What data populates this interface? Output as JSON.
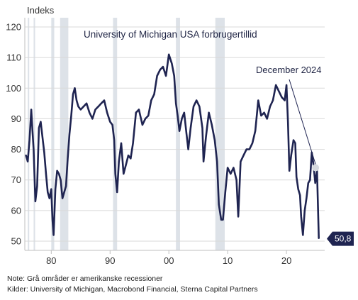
{
  "chart_data": {
    "type": "line",
    "title": "University of Michigan USA forbrugertillid",
    "ylabel": "Indeks",
    "ylim": [
      47,
      123
    ],
    "yticks": [
      50,
      60,
      70,
      80,
      90,
      100,
      110,
      120
    ],
    "xlim": [
      1975.5,
      2026.5
    ],
    "xticks": [
      {
        "value": 1980,
        "label": "80"
      },
      {
        "value": 1990,
        "label": "90"
      },
      {
        "value": 2000,
        "label": "00"
      },
      {
        "value": 2010,
        "label": "10"
      },
      {
        "value": 2020,
        "label": "20"
      }
    ],
    "grid": true,
    "recessions": [
      [
        1976.0,
        1976.25
      ],
      [
        1977.0,
        1977.25
      ],
      [
        1980.0,
        1980.5
      ],
      [
        1981.5,
        1982.9
      ],
      [
        1990.5,
        1991.2
      ],
      [
        2001.2,
        2001.9
      ],
      [
        2007.9,
        2009.5
      ]
    ],
    "series": [
      {
        "color": "#1f2451",
        "x": [
          1975.7,
          1976.0,
          1976.3,
          1976.6,
          1976.8,
          1977.0,
          1977.3,
          1977.6,
          1977.9,
          1978.2,
          1978.5,
          1978.8,
          1979.1,
          1979.4,
          1979.7,
          1980.0,
          1980.2,
          1980.4,
          1980.7,
          1981.0,
          1981.3,
          1981.6,
          1981.9,
          1982.2,
          1982.5,
          1982.8,
          1983.1,
          1983.4,
          1983.7,
          1984.0,
          1984.3,
          1984.6,
          1985.0,
          1985.5,
          1986.0,
          1986.5,
          1987.0,
          1987.5,
          1988.0,
          1988.5,
          1989.0,
          1989.5,
          1990.0,
          1990.4,
          1990.7,
          1990.9,
          1991.2,
          1991.5,
          1991.9,
          1992.3,
          1992.7,
          1993.1,
          1993.5,
          1993.9,
          1994.4,
          1994.9,
          1995.5,
          1996.0,
          1996.5,
          1997.0,
          1997.5,
          1998.0,
          1998.5,
          1999.0,
          1999.5,
          2000.0,
          2000.5,
          2000.9,
          2001.2,
          2001.5,
          2001.8,
          2002.2,
          2002.6,
          2003.0,
          2003.3,
          2003.7,
          2004.2,
          2004.7,
          2005.2,
          2005.7,
          2005.9,
          2006.3,
          2006.8,
          2007.3,
          2007.8,
          2008.2,
          2008.5,
          2008.9,
          2009.2,
          2009.6,
          2010.0,
          2010.5,
          2011.0,
          2011.5,
          2011.8,
          2012.2,
          2012.7,
          2013.2,
          2013.7,
          2014.2,
          2014.7,
          2015.2,
          2015.7,
          2016.2,
          2016.7,
          2017.2,
          2017.7,
          2018.2,
          2018.7,
          2019.2,
          2019.7,
          2020.0,
          2020.25,
          2020.5,
          2020.8,
          2021.2,
          2021.5,
          2021.7,
          2022.0,
          2022.3,
          2022.5,
          2022.8,
          2023.1,
          2023.4,
          2023.7,
          2024.0,
          2024.3,
          2024.6,
          2024.9,
          2025.2,
          2025.5
        ],
        "y": [
          78,
          76,
          83,
          93,
          86,
          80,
          63,
          68,
          87,
          89,
          84,
          79,
          72,
          66,
          64,
          67,
          57,
          52,
          67,
          73,
          72,
          70,
          64,
          66,
          68,
          77,
          85,
          91,
          98,
          100,
          96,
          94,
          93,
          94,
          95,
          92,
          90,
          93,
          94,
          95,
          96,
          92,
          89,
          88,
          83,
          72,
          66,
          76,
          82,
          72,
          75,
          78,
          77,
          82,
          92,
          93,
          88,
          90,
          91,
          96,
          98,
          104,
          106,
          107,
          104,
          111,
          108,
          104,
          95,
          91,
          86,
          90,
          92,
          85,
          80,
          87,
          94,
          96,
          94,
          87,
          76,
          84,
          92,
          88,
          83,
          76,
          62,
          57,
          57,
          66,
          74,
          72,
          74,
          70,
          58,
          76,
          78,
          80,
          80,
          82,
          86,
          96,
          91,
          92,
          90,
          94,
          96,
          101,
          99,
          97,
          96,
          101,
          89,
          73,
          78,
          83,
          82,
          71,
          67,
          65,
          58,
          52,
          60,
          64,
          69,
          70,
          79,
          75,
          69,
          73,
          51
        ]
      }
    ],
    "annotation": {
      "text": "December 2024",
      "x": 2024.95,
      "y": 74
    },
    "end_value_label": "50,8",
    "end_value": 50.8
  },
  "notes": [
    "Note: Grå områder er amerikanske recessioner",
    "Kilder: University of Michigan, Macrobond Financial, Sterna Capital Partners"
  ]
}
